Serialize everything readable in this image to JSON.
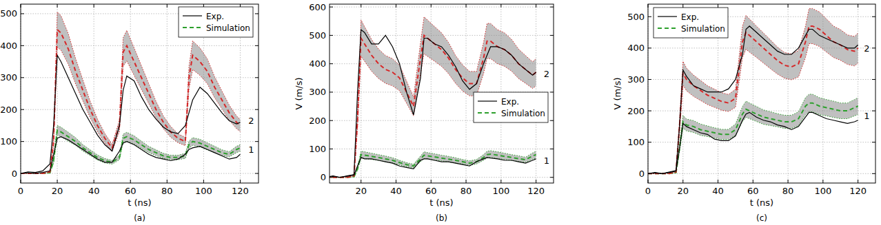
{
  "chart_data": [
    {
      "type": "line",
      "caption": "(a)",
      "x_label": "t (ns)",
      "xlim": [
        0,
        130
      ],
      "xticks": [
        0,
        20,
        40,
        60,
        80,
        100,
        120
      ],
      "ylim": [
        -30,
        530
      ],
      "yticks": [
        0,
        100,
        200,
        300,
        400,
        500
      ],
      "grid": true,
      "legend": "upper right",
      "x": [
        0,
        4,
        8,
        12,
        16,
        18,
        20,
        22,
        26,
        30,
        34,
        38,
        42,
        46,
        50,
        54,
        56,
        58,
        62,
        66,
        70,
        74,
        78,
        82,
        86,
        90,
        92,
        94,
        98,
        102,
        106,
        110,
        114,
        118,
        120
      ],
      "series": [
        {
          "name": "Exp.",
          "color": "#000000",
          "line_style": "solid",
          "values": [
            0,
            2,
            0,
            3,
            8,
            60,
            110,
            115,
            105,
            90,
            75,
            60,
            45,
            35,
            35,
            70,
            95,
            100,
            90,
            75,
            60,
            50,
            45,
            40,
            45,
            60,
            75,
            80,
            85,
            75,
            65,
            55,
            45,
            50,
            60
          ]
        },
        {
          "name": "Exp.",
          "color": "#000000",
          "line_style": "solid",
          "values": [
            0,
            5,
            3,
            8,
            30,
            150,
            370,
            350,
            300,
            250,
            200,
            160,
            120,
            90,
            70,
            150,
            260,
            305,
            290,
            240,
            200,
            170,
            145,
            130,
            125,
            150,
            190,
            230,
            270,
            250,
            220,
            190,
            165,
            155,
            160
          ]
        },
        {
          "name": "Simulation",
          "color": "#2ca02c",
          "line_style": "dashed",
          "values": [
            0,
            0,
            0,
            0,
            2,
            40,
            135,
            130,
            115,
            100,
            80,
            65,
            50,
            40,
            35,
            50,
            110,
            115,
            105,
            90,
            75,
            65,
            55,
            50,
            50,
            55,
            90,
            100,
            95,
            85,
            75,
            65,
            60,
            75,
            80
          ],
          "error": [
            0,
            0,
            0,
            0,
            1,
            8,
            15,
            15,
            14,
            12,
            10,
            9,
            8,
            7,
            6,
            7,
            13,
            14,
            13,
            11,
            10,
            9,
            8,
            7,
            7,
            8,
            11,
            12,
            12,
            11,
            10,
            9,
            8,
            10,
            10
          ]
        },
        {
          "name": "Simulation",
          "color": "#d62728",
          "line_style": "dashed",
          "values": [
            0,
            0,
            0,
            0,
            5,
            100,
            450,
            440,
            390,
            320,
            260,
            200,
            150,
            110,
            80,
            150,
            380,
            400,
            350,
            300,
            250,
            200,
            160,
            130,
            110,
            100,
            300,
            370,
            350,
            320,
            270,
            230,
            190,
            160,
            150
          ],
          "error": [
            0,
            0,
            0,
            0,
            1,
            12,
            55,
            54,
            48,
            40,
            33,
            26,
            20,
            15,
            11,
            18,
            45,
            48,
            43,
            37,
            31,
            25,
            20,
            17,
            14,
            13,
            36,
            45,
            43,
            39,
            33,
            28,
            24,
            20,
            19
          ]
        }
      ],
      "annotations": [
        {
          "text": "2",
          "x": 126,
          "y": 165
        },
        {
          "text": "1",
          "x": 126,
          "y": 75
        }
      ]
    },
    {
      "type": "line",
      "caption": "(b)",
      "x_label": "t (ns)",
      "y_label": "V (m/s)",
      "xlim": [
        2,
        130
      ],
      "xticks": [
        20,
        40,
        60,
        80,
        100,
        120
      ],
      "ylim": [
        -20,
        610
      ],
      "yticks": [
        0,
        100,
        200,
        300,
        400,
        500,
        600
      ],
      "grid": true,
      "legend": "right",
      "x": [
        0,
        4,
        8,
        12,
        16,
        18,
        20,
        22,
        26,
        30,
        34,
        38,
        42,
        46,
        50,
        54,
        56,
        58,
        62,
        66,
        70,
        74,
        78,
        82,
        86,
        90,
        92,
        94,
        98,
        102,
        106,
        110,
        114,
        118,
        120
      ],
      "series": [
        {
          "name": "Exp.",
          "color": "#000000",
          "line_style": "solid",
          "values": [
            0,
            3,
            0,
            4,
            8,
            40,
            70,
            65,
            65,
            60,
            55,
            50,
            40,
            35,
            30,
            60,
            65,
            65,
            60,
            55,
            55,
            50,
            45,
            40,
            55,
            65,
            70,
            68,
            65,
            60,
            60,
            55,
            50,
            60,
            65
          ]
        },
        {
          "name": "Exp.",
          "color": "#000000",
          "line_style": "solid",
          "values": [
            0,
            5,
            0,
            5,
            10,
            300,
            520,
            510,
            470,
            470,
            500,
            460,
            400,
            300,
            220,
            350,
            490,
            490,
            470,
            460,
            430,
            390,
            340,
            310,
            330,
            400,
            430,
            460,
            460,
            450,
            430,
            400,
            380,
            360,
            370
          ]
        },
        {
          "name": "Simulation",
          "color": "#2ca02c",
          "line_style": "dashed",
          "values": [
            0,
            0,
            0,
            0,
            2,
            30,
            80,
            78,
            74,
            70,
            65,
            60,
            52,
            45,
            40,
            65,
            78,
            76,
            72,
            68,
            64,
            60,
            55,
            50,
            55,
            70,
            80,
            82,
            78,
            74,
            70,
            66,
            62,
            75,
            80
          ],
          "error": [
            0,
            0,
            0,
            0,
            1,
            5,
            12,
            12,
            11,
            10,
            10,
            9,
            8,
            7,
            6,
            10,
            12,
            11,
            11,
            10,
            10,
            9,
            8,
            8,
            8,
            10,
            12,
            12,
            12,
            11,
            10,
            10,
            9,
            11,
            12
          ]
        },
        {
          "name": "Simulation",
          "color": "#d62728",
          "line_style": "dashed",
          "values": [
            0,
            0,
            0,
            0,
            5,
            200,
            490,
            470,
            430,
            400,
            380,
            370,
            350,
            300,
            250,
            420,
            500,
            490,
            470,
            450,
            420,
            380,
            350,
            330,
            330,
            420,
            480,
            480,
            460,
            450,
            430,
            400,
            380,
            360,
            370
          ],
          "error": [
            0,
            0,
            0,
            0,
            1,
            26,
            64,
            61,
            56,
            52,
            49,
            48,
            45,
            39,
            33,
            55,
            65,
            64,
            61,
            59,
            55,
            49,
            46,
            43,
            43,
            55,
            62,
            62,
            60,
            59,
            56,
            52,
            49,
            47,
            48
          ]
        }
      ],
      "annotations": [
        {
          "text": "2",
          "x": 126,
          "y": 365
        },
        {
          "text": "1",
          "x": 126,
          "y": 60
        }
      ]
    },
    {
      "type": "line",
      "caption": "(c)",
      "x_label": "t (ns)",
      "y_label": "V (m/s)",
      "xlim": [
        0,
        130
      ],
      "xticks": [
        0,
        20,
        40,
        60,
        80,
        100,
        120
      ],
      "ylim": [
        -30,
        540
      ],
      "yticks": [
        0,
        100,
        200,
        300,
        400,
        500
      ],
      "grid": true,
      "legend": "upper left",
      "x": [
        0,
        4,
        8,
        12,
        16,
        18,
        20,
        22,
        26,
        30,
        34,
        38,
        42,
        46,
        50,
        54,
        56,
        58,
        62,
        66,
        70,
        74,
        78,
        82,
        86,
        90,
        92,
        94,
        98,
        102,
        106,
        110,
        114,
        118,
        120
      ],
      "series": [
        {
          "name": "Exp.",
          "color": "#000000",
          "line_style": "solid",
          "values": [
            0,
            2,
            0,
            3,
            8,
            80,
            160,
            150,
            140,
            130,
            125,
            110,
            105,
            105,
            120,
            170,
            190,
            195,
            180,
            170,
            165,
            155,
            150,
            140,
            150,
            180,
            195,
            195,
            185,
            175,
            170,
            165,
            160,
            165,
            170
          ]
        },
        {
          "name": "Exp.",
          "color": "#000000",
          "line_style": "solid",
          "values": [
            0,
            4,
            0,
            5,
            10,
            150,
            330,
            310,
            280,
            270,
            260,
            260,
            260,
            270,
            300,
            380,
            460,
            470,
            450,
            430,
            410,
            390,
            380,
            380,
            400,
            440,
            460,
            460,
            440,
            430,
            420,
            410,
            400,
            400,
            410
          ]
        },
        {
          "name": "Simulation",
          "color": "#2ca02c",
          "line_style": "dashed",
          "values": [
            0,
            0,
            0,
            0,
            3,
            80,
            165,
            155,
            150,
            140,
            135,
            130,
            125,
            125,
            140,
            190,
            205,
            200,
            190,
            180,
            175,
            170,
            165,
            165,
            175,
            215,
            225,
            225,
            215,
            210,
            205,
            200,
            200,
            210,
            215
          ],
          "error": [
            0,
            0,
            0,
            0,
            1,
            10,
            20,
            19,
            19,
            18,
            17,
            16,
            16,
            16,
            18,
            24,
            26,
            25,
            24,
            23,
            22,
            21,
            21,
            21,
            22,
            27,
            28,
            28,
            27,
            26,
            26,
            25,
            25,
            26,
            27
          ]
        },
        {
          "name": "Simulation",
          "color": "#d62728",
          "line_style": "dashed",
          "values": [
            0,
            0,
            0,
            0,
            5,
            150,
            320,
            300,
            280,
            265,
            250,
            240,
            230,
            225,
            240,
            420,
            450,
            440,
            420,
            400,
            380,
            360,
            345,
            340,
            350,
            420,
            470,
            470,
            460,
            440,
            420,
            410,
            395,
            390,
            400
          ],
          "error": [
            0,
            0,
            0,
            0,
            1,
            18,
            38,
            36,
            34,
            32,
            30,
            29,
            28,
            27,
            29,
            50,
            54,
            53,
            50,
            48,
            46,
            43,
            41,
            41,
            42,
            50,
            56,
            56,
            55,
            53,
            50,
            49,
            47,
            47,
            48
          ]
        }
      ],
      "annotations": [
        {
          "text": "2",
          "x": 125,
          "y": 400
        },
        {
          "text": "1",
          "x": 125,
          "y": 185
        }
      ]
    }
  ]
}
